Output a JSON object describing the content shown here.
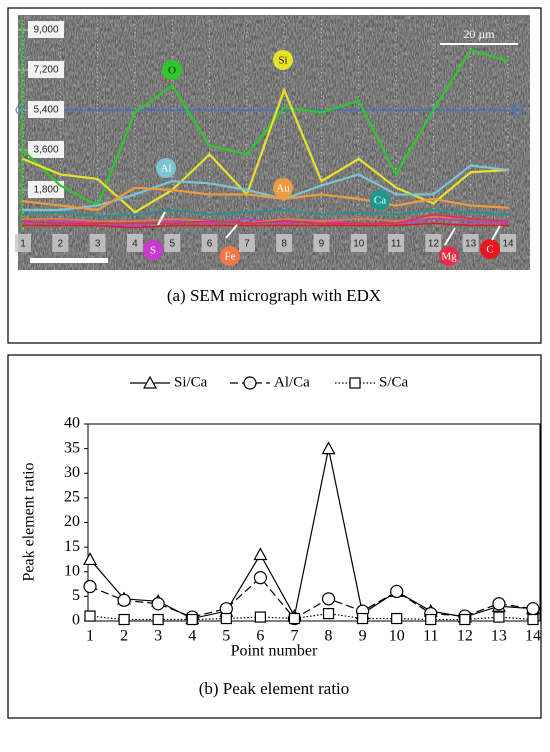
{
  "chart_data": [
    {
      "type": "line",
      "caption": "(a) SEM micrograph with EDX",
      "scale_label": "20 µm",
      "categories": [
        "1",
        "2",
        "3",
        "4",
        "5",
        "6",
        "7",
        "8",
        "9",
        "10",
        "11",
        "12",
        "13",
        "14"
      ],
      "ylim": [
        0,
        9000
      ],
      "yticks": [
        {
          "value": 1800,
          "label": "1,800"
        },
        {
          "value": 3600,
          "label": "3,600"
        },
        {
          "value": 5400,
          "label": "5,400"
        },
        {
          "value": 7200,
          "label": "7,200"
        },
        {
          "value": 9000,
          "label": "9,000"
        }
      ],
      "series": [
        {
          "name": "O",
          "color": "#2ec82a",
          "values": [
            3600,
            2000,
            1100,
            5300,
            6500,
            3800,
            3400,
            5500,
            5300,
            5800,
            2500,
            5400,
            8100,
            7600
          ]
        },
        {
          "name": "Si",
          "color": "#e6e22a",
          "values": [
            3200,
            2500,
            2300,
            800,
            1800,
            3400,
            1600,
            6300,
            2200,
            3200,
            1900,
            1200,
            2600,
            2700
          ]
        },
        {
          "name": "Al",
          "color": "#7cc4d2",
          "values": [
            900,
            900,
            1100,
            1600,
            2200,
            2100,
            1800,
            1400,
            2000,
            2500,
            1600,
            1600,
            2900,
            2700
          ]
        },
        {
          "name": "Au",
          "color": "#f09a40",
          "values": [
            1300,
            1100,
            900,
            1900,
            1800,
            1600,
            1600,
            1400,
            1600,
            1400,
            1100,
            1400,
            1100,
            1000
          ]
        },
        {
          "name": "Ca",
          "color": "#1a9a8e",
          "values": [
            700,
            800,
            600,
            700,
            900,
            700,
            800,
            900,
            700,
            800,
            700,
            900,
            800,
            700
          ]
        },
        {
          "name": "S",
          "color": "#c83ad0",
          "values": [
            300,
            400,
            300,
            200,
            400,
            300,
            500,
            300,
            400,
            300,
            300,
            500,
            400,
            300
          ]
        },
        {
          "name": "Fe",
          "color": "#f07848",
          "values": [
            500,
            500,
            400,
            400,
            500,
            400,
            300,
            500,
            400,
            500,
            400,
            600,
            500,
            400
          ]
        },
        {
          "name": "Mg",
          "color": "#e0304a",
          "values": [
            400,
            300,
            300,
            300,
            300,
            400,
            300,
            400,
            300,
            300,
            300,
            700,
            500,
            400
          ]
        },
        {
          "name": "C",
          "color": "#e8161e",
          "values": [
            200,
            200,
            200,
            100,
            200,
            200,
            200,
            200,
            200,
            200,
            200,
            300,
            200,
            200
          ]
        }
      ]
    },
    {
      "type": "line",
      "caption": "(b) Peak element ratio",
      "x_label": "Point number",
      "y_label": "Peak element ratio",
      "categories": [
        "1",
        "2",
        "3",
        "4",
        "5",
        "6",
        "7",
        "8",
        "9",
        "10",
        "11",
        "12",
        "13",
        "14"
      ],
      "ylim": [
        0,
        40
      ],
      "yticks": [
        0,
        5,
        10,
        15,
        20,
        25,
        30,
        35,
        40
      ],
      "series": [
        {
          "name": "Si/Ca",
          "color": "#000000",
          "marker": "triangle",
          "dash": "solid",
          "values": [
            12.5,
            4.5,
            4,
            0.5,
            2,
            13.5,
            1,
            35,
            1.5,
            6,
            2,
            0.8,
            3,
            2.5
          ]
        },
        {
          "name": "Al/Ca",
          "color": "#000000",
          "marker": "circle",
          "dash": "dashed",
          "values": [
            7,
            4.2,
            3.5,
            0.8,
            2.5,
            8.8,
            0.5,
            4.5,
            2,
            6,
            1.5,
            1,
            3.5,
            2.5
          ]
        },
        {
          "name": "S/Ca",
          "color": "#000000",
          "marker": "square",
          "dash": "dotted",
          "values": [
            1,
            0.3,
            0.3,
            0.3,
            0.5,
            0.8,
            0.5,
            1.5,
            0.5,
            0.5,
            0.3,
            0.3,
            0.8,
            0.3
          ]
        }
      ]
    }
  ]
}
